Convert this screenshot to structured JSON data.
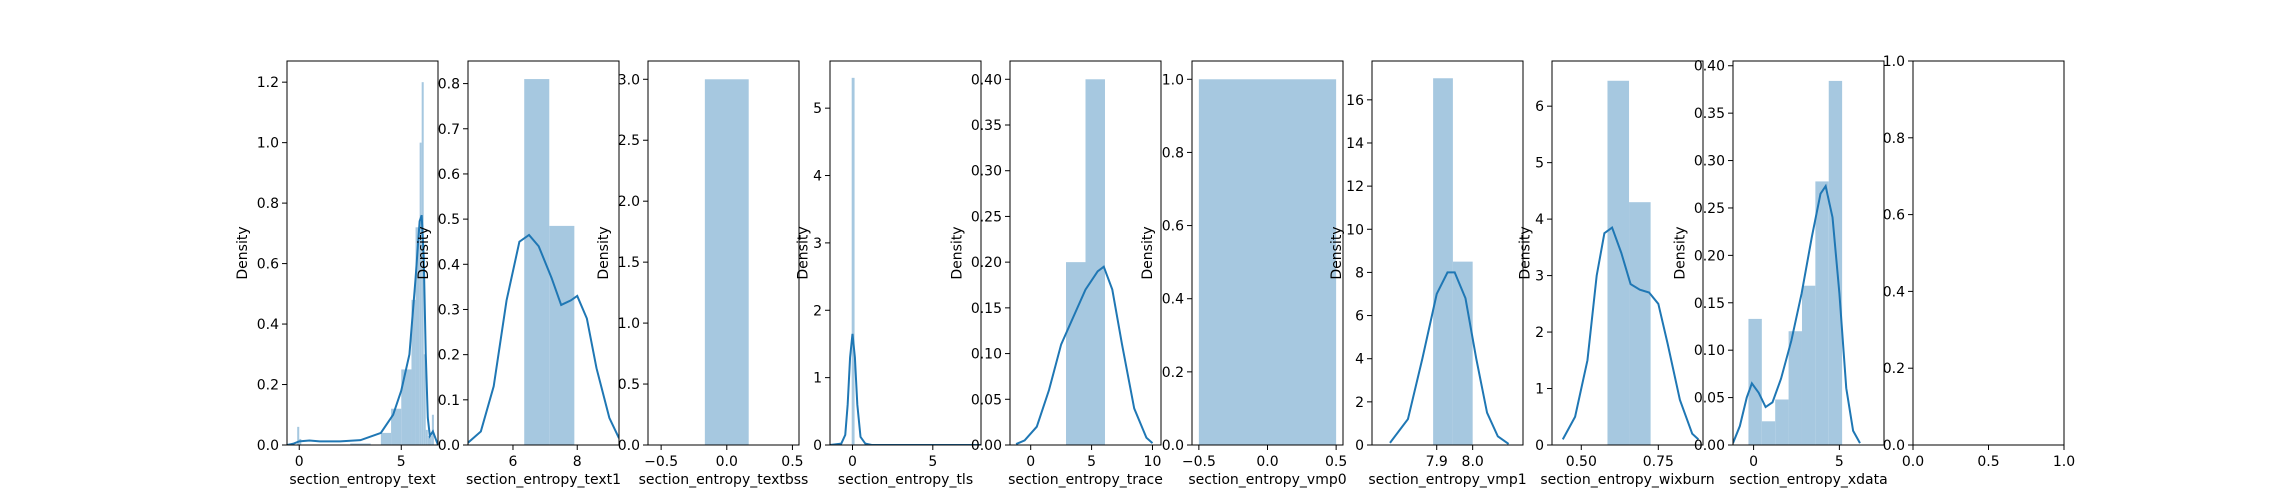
{
  "figure": {
    "style": "matplotlib/seaborn distplot grid",
    "hist_color": "#a6c8e0",
    "kde_color": "#1f77b4",
    "spine_color": "#000000"
  },
  "chart_data": [
    {
      "type": "histogram+kde",
      "xlabel": "section_entropy_text",
      "ylabel": "Density",
      "xlim": [
        -0.6,
        6.8
      ],
      "ylim": [
        0,
        1.27
      ],
      "xticks": [
        {
          "v": 0,
          "t": "0"
        },
        {
          "v": 5,
          "t": "5"
        }
      ],
      "yticks": [
        {
          "v": 0,
          "t": "0.0"
        },
        {
          "v": 0.2,
          "t": "0.2"
        },
        {
          "v": 0.4,
          "t": "0.4"
        },
        {
          "v": 0.6,
          "t": "0.6"
        },
        {
          "v": 0.8,
          "t": "0.8"
        },
        {
          "v": 1.0,
          "t": "1.0"
        },
        {
          "v": 1.2,
          "t": "1.2"
        }
      ],
      "bins": [
        [
          -0.1,
          0.0,
          0.06
        ],
        [
          0.0,
          0.1,
          0.02
        ],
        [
          2.5,
          3.5,
          0.005
        ],
        [
          4.0,
          4.5,
          0.04
        ],
        [
          4.5,
          5.0,
          0.12
        ],
        [
          5.0,
          5.5,
          0.25
        ],
        [
          5.5,
          5.7,
          0.48
        ],
        [
          5.7,
          5.9,
          0.72
        ],
        [
          5.9,
          6.0,
          1.0
        ],
        [
          6.0,
          6.1,
          1.2
        ],
        [
          6.1,
          6.2,
          0.3
        ],
        [
          6.2,
          6.3,
          0.05
        ],
        [
          6.3,
          6.5,
          0.03
        ],
        [
          6.5,
          6.6,
          0.1
        ]
      ],
      "kde": [
        [
          -0.6,
          0.0
        ],
        [
          -0.3,
          0.004
        ],
        [
          0.0,
          0.012
        ],
        [
          0.5,
          0.015
        ],
        [
          1.0,
          0.012
        ],
        [
          2.0,
          0.012
        ],
        [
          3.0,
          0.016
        ],
        [
          4.0,
          0.04
        ],
        [
          4.6,
          0.1
        ],
        [
          5.0,
          0.18
        ],
        [
          5.4,
          0.3
        ],
        [
          5.7,
          0.55
        ],
        [
          5.9,
          0.74
        ],
        [
          6.0,
          0.76
        ],
        [
          6.1,
          0.62
        ],
        [
          6.2,
          0.3
        ],
        [
          6.3,
          0.09
        ],
        [
          6.4,
          0.03
        ],
        [
          6.55,
          0.045
        ],
        [
          6.8,
          0.0
        ]
      ]
    },
    {
      "type": "histogram+kde",
      "xlabel": "section_entropy_text1",
      "ylabel": "Density",
      "xlim": [
        4.6,
        9.3
      ],
      "ylim": [
        0,
        0.85
      ],
      "xticks": [
        {
          "v": 6,
          "t": "6"
        },
        {
          "v": 8,
          "t": "8"
        }
      ],
      "yticks": [
        {
          "v": 0,
          "t": "0.0"
        },
        {
          "v": 0.1,
          "t": "0.1"
        },
        {
          "v": 0.2,
          "t": "0.2"
        },
        {
          "v": 0.3,
          "t": "0.3"
        },
        {
          "v": 0.4,
          "t": "0.4"
        },
        {
          "v": 0.5,
          "t": "0.5"
        },
        {
          "v": 0.6,
          "t": "0.6"
        },
        {
          "v": 0.7,
          "t": "0.7"
        },
        {
          "v": 0.8,
          "t": "0.8"
        }
      ],
      "bins": [
        [
          6.35,
          7.13,
          0.81
        ],
        [
          7.13,
          7.91,
          0.485
        ]
      ],
      "kde": [
        [
          4.6,
          0.005
        ],
        [
          5.0,
          0.03
        ],
        [
          5.4,
          0.13
        ],
        [
          5.8,
          0.32
        ],
        [
          6.2,
          0.45
        ],
        [
          6.5,
          0.465
        ],
        [
          6.8,
          0.44
        ],
        [
          7.2,
          0.37
        ],
        [
          7.5,
          0.31
        ],
        [
          7.8,
          0.32
        ],
        [
          8.0,
          0.33
        ],
        [
          8.3,
          0.28
        ],
        [
          8.6,
          0.17
        ],
        [
          9.0,
          0.06
        ],
        [
          9.3,
          0.015
        ]
      ]
    },
    {
      "type": "histogram+kde",
      "xlabel": "section_entropy_textbss",
      "ylabel": "Density",
      "xlim": [
        -0.6,
        0.55
      ],
      "ylim": [
        0,
        3.15
      ],
      "xticks": [
        {
          "v": -0.5,
          "t": "−0.5"
        },
        {
          "v": 0,
          "t": "0.0"
        },
        {
          "v": 0.5,
          "t": "0.5"
        }
      ],
      "yticks": [
        {
          "v": 0,
          "t": "0.0"
        },
        {
          "v": 0.5,
          "t": "0.5"
        },
        {
          "v": 1.0,
          "t": "1.0"
        },
        {
          "v": 1.5,
          "t": "1.5"
        },
        {
          "v": 2.0,
          "t": "2.0"
        },
        {
          "v": 2.5,
          "t": "2.5"
        },
        {
          "v": 3.0,
          "t": "3.0"
        }
      ],
      "bins": [
        [
          -0.167,
          0.167,
          3.0
        ]
      ],
      "kde": []
    },
    {
      "type": "histogram+kde",
      "xlabel": "section_entropy_tls",
      "ylabel": "Density",
      "xlim": [
        -1.4,
        8.0
      ],
      "ylim": [
        0,
        5.7
      ],
      "xticks": [
        {
          "v": 0,
          "t": "0"
        },
        {
          "v": 5,
          "t": "5"
        }
      ],
      "yticks": [
        {
          "v": 0,
          "t": "0"
        },
        {
          "v": 1,
          "t": "1"
        },
        {
          "v": 2,
          "t": "2"
        },
        {
          "v": 3,
          "t": "3"
        },
        {
          "v": 4,
          "t": "4"
        },
        {
          "v": 5,
          "t": "5"
        }
      ],
      "bins": [
        [
          -0.05,
          0.13,
          5.45
        ],
        [
          0.13,
          7.9,
          0.01
        ]
      ],
      "kde": [
        [
          -1.4,
          0.0
        ],
        [
          -0.7,
          0.02
        ],
        [
          -0.45,
          0.15
        ],
        [
          -0.3,
          0.6
        ],
        [
          -0.15,
          1.3
        ],
        [
          0.0,
          1.65
        ],
        [
          0.15,
          1.3
        ],
        [
          0.3,
          0.6
        ],
        [
          0.5,
          0.12
        ],
        [
          0.8,
          0.02
        ],
        [
          1.2,
          0.0
        ],
        [
          8.0,
          0.0
        ]
      ]
    },
    {
      "type": "histogram+kde",
      "xlabel": "section_entropy_trace",
      "ylabel": "Density",
      "xlim": [
        -1.7,
        10.7
      ],
      "ylim": [
        0,
        0.42
      ],
      "xticks": [
        {
          "v": 0,
          "t": "0"
        },
        {
          "v": 5,
          "t": "5"
        },
        {
          "v": 10,
          "t": "10"
        }
      ],
      "yticks": [
        {
          "v": 0,
          "t": "0.00"
        },
        {
          "v": 0.05,
          "t": "0.05"
        },
        {
          "v": 0.1,
          "t": "0.10"
        },
        {
          "v": 0.15,
          "t": "0.15"
        },
        {
          "v": 0.2,
          "t": "0.20"
        },
        {
          "v": 0.25,
          "t": "0.25"
        },
        {
          "v": 0.3,
          "t": "0.30"
        },
        {
          "v": 0.35,
          "t": "0.35"
        },
        {
          "v": 0.4,
          "t": "0.40"
        }
      ],
      "bins": [
        [
          2.9,
          4.5,
          0.2
        ],
        [
          4.5,
          6.1,
          0.4
        ]
      ],
      "kde": [
        [
          -1.2,
          0.001
        ],
        [
          -0.5,
          0.005
        ],
        [
          0.5,
          0.02
        ],
        [
          1.5,
          0.06
        ],
        [
          2.5,
          0.11
        ],
        [
          3.5,
          0.14
        ],
        [
          4.5,
          0.17
        ],
        [
          5.5,
          0.19
        ],
        [
          6.0,
          0.195
        ],
        [
          6.7,
          0.17
        ],
        [
          7.5,
          0.11
        ],
        [
          8.5,
          0.04
        ],
        [
          9.5,
          0.008
        ],
        [
          10.0,
          0.002
        ]
      ]
    },
    {
      "type": "histogram+kde",
      "xlabel": "section_entropy_vmp0",
      "ylabel": "Density",
      "xlim": [
        -0.55,
        0.55
      ],
      "ylim": [
        0,
        1.05
      ],
      "xticks": [
        {
          "v": -0.5,
          "t": "−0.5"
        },
        {
          "v": 0,
          "t": "0.0"
        },
        {
          "v": 0.5,
          "t": "0.5"
        }
      ],
      "yticks": [
        {
          "v": 0,
          "t": "0.0"
        },
        {
          "v": 0.2,
          "t": "0.2"
        },
        {
          "v": 0.4,
          "t": "0.4"
        },
        {
          "v": 0.6,
          "t": "0.6"
        },
        {
          "v": 0.8,
          "t": "0.8"
        },
        {
          "v": 1.0,
          "t": "1.0"
        }
      ],
      "bins": [
        [
          -0.5,
          0.5,
          1.0
        ]
      ],
      "kde": []
    },
    {
      "type": "histogram+kde",
      "xlabel": "section_entropy_vmp1",
      "ylabel": "Density",
      "xlim": [
        7.72,
        8.14
      ],
      "ylim": [
        0,
        17.8
      ],
      "xticks": [
        {
          "v": 7.9,
          "t": "7.9"
        },
        {
          "v": 8.0,
          "t": "8.0"
        }
      ],
      "yticks": [
        {
          "v": 0,
          "t": "0"
        },
        {
          "v": 2,
          "t": "2"
        },
        {
          "v": 4,
          "t": "4"
        },
        {
          "v": 6,
          "t": "6"
        },
        {
          "v": 8,
          "t": "8"
        },
        {
          "v": 10,
          "t": "10"
        },
        {
          "v": 12,
          "t": "12"
        },
        {
          "v": 14,
          "t": "14"
        },
        {
          "v": 16,
          "t": "16"
        }
      ],
      "bins": [
        [
          7.89,
          7.945,
          17.0
        ],
        [
          7.945,
          8.0,
          8.5
        ]
      ],
      "kde": [
        [
          7.77,
          0.1
        ],
        [
          7.82,
          1.2
        ],
        [
          7.86,
          4.0
        ],
        [
          7.9,
          7.0
        ],
        [
          7.93,
          8.0
        ],
        [
          7.95,
          8.0
        ],
        [
          7.98,
          6.8
        ],
        [
          8.01,
          4.0
        ],
        [
          8.04,
          1.5
        ],
        [
          8.07,
          0.4
        ],
        [
          8.1,
          0.05
        ]
      ]
    },
    {
      "type": "histogram+kde",
      "xlabel": "section_entropy_wixburn",
      "ylabel": "Density",
      "xlim": [
        0.405,
        0.895
      ],
      "ylim": [
        0,
        6.8
      ],
      "xticks": [
        {
          "v": 0.5,
          "t": "0.50"
        },
        {
          "v": 0.75,
          "t": "0.75"
        }
      ],
      "yticks": [
        {
          "v": 0,
          "t": "0"
        },
        {
          "v": 1,
          "t": "1"
        },
        {
          "v": 2,
          "t": "2"
        },
        {
          "v": 3,
          "t": "3"
        },
        {
          "v": 4,
          "t": "4"
        },
        {
          "v": 5,
          "t": "5"
        },
        {
          "v": 6,
          "t": "6"
        }
      ],
      "bins": [
        [
          0.585,
          0.655,
          6.45
        ],
        [
          0.655,
          0.725,
          4.3
        ]
      ],
      "kde": [
        [
          0.44,
          0.1
        ],
        [
          0.48,
          0.5
        ],
        [
          0.52,
          1.5
        ],
        [
          0.55,
          3.0
        ],
        [
          0.575,
          3.75
        ],
        [
          0.6,
          3.85
        ],
        [
          0.63,
          3.4
        ],
        [
          0.66,
          2.85
        ],
        [
          0.69,
          2.75
        ],
        [
          0.72,
          2.7
        ],
        [
          0.75,
          2.5
        ],
        [
          0.78,
          1.8
        ],
        [
          0.82,
          0.8
        ],
        [
          0.86,
          0.2
        ],
        [
          0.88,
          0.1
        ]
      ]
    },
    {
      "type": "histogram+kde",
      "xlabel": "section_entropy_xdata",
      "ylabel": "Density",
      "xlim": [
        -1.2,
        7.6
      ],
      "ylim": [
        0,
        0.405
      ],
      "xticks": [
        {
          "v": 0,
          "t": "0"
        },
        {
          "v": 5,
          "t": "5"
        }
      ],
      "yticks": [
        {
          "v": 0,
          "t": "0.00"
        },
        {
          "v": 0.05,
          "t": "0.05"
        },
        {
          "v": 0.1,
          "t": "0.10"
        },
        {
          "v": 0.15,
          "t": "0.15"
        },
        {
          "v": 0.2,
          "t": "0.20"
        },
        {
          "v": 0.25,
          "t": "0.25"
        },
        {
          "v": 0.3,
          "t": "0.30"
        },
        {
          "v": 0.35,
          "t": "0.35"
        },
        {
          "v": 0.4,
          "t": "0.40"
        }
      ],
      "bins": [
        [
          -0.3,
          0.48,
          0.133
        ],
        [
          0.48,
          1.26,
          0.025
        ],
        [
          1.26,
          2.04,
          0.048
        ],
        [
          2.04,
          2.82,
          0.12
        ],
        [
          2.82,
          3.6,
          0.168
        ],
        [
          3.6,
          4.38,
          0.278
        ],
        [
          4.38,
          5.16,
          0.384
        ]
      ],
      "kde": [
        [
          -1.2,
          0.002
        ],
        [
          -0.8,
          0.02
        ],
        [
          -0.4,
          0.05
        ],
        [
          -0.1,
          0.065
        ],
        [
          0.3,
          0.055
        ],
        [
          0.7,
          0.04
        ],
        [
          1.1,
          0.045
        ],
        [
          1.6,
          0.07
        ],
        [
          2.2,
          0.11
        ],
        [
          2.8,
          0.16
        ],
        [
          3.4,
          0.22
        ],
        [
          3.9,
          0.265
        ],
        [
          4.2,
          0.273
        ],
        [
          4.6,
          0.24
        ],
        [
          5.0,
          0.16
        ],
        [
          5.4,
          0.06
        ],
        [
          5.8,
          0.015
        ],
        [
          6.2,
          0.002
        ]
      ]
    },
    {
      "type": "empty",
      "xlabel": "",
      "ylabel": "",
      "xlim": [
        0,
        1
      ],
      "ylim": [
        0,
        1
      ],
      "xticks": [
        {
          "v": 0,
          "t": "0.0"
        },
        {
          "v": 0.5,
          "t": "0.5"
        },
        {
          "v": 1.0,
          "t": "1.0"
        }
      ],
      "yticks": [
        {
          "v": 0,
          "t": "0.0"
        },
        {
          "v": 0.2,
          "t": "0.2"
        },
        {
          "v": 0.4,
          "t": "0.4"
        },
        {
          "v": 0.6,
          "t": "0.6"
        },
        {
          "v": 0.8,
          "t": "0.8"
        },
        {
          "v": 1.0,
          "t": "1.0"
        }
      ],
      "bins": [],
      "kde": []
    }
  ]
}
